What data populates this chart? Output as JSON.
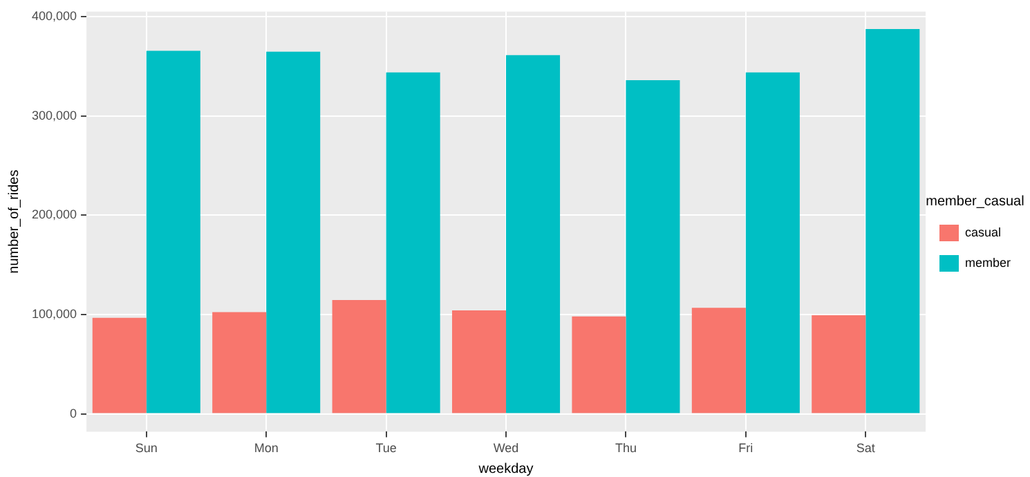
{
  "chart_data": {
    "type": "bar",
    "xlabel": "weekday",
    "ylabel": "number_of_rides",
    "legend_title": "member_casual",
    "categories": [
      "Sun",
      "Mon",
      "Tue",
      "Wed",
      "Thu",
      "Fri",
      "Sat"
    ],
    "series": [
      {
        "name": "casual",
        "color": "#f8766d",
        "values": [
          96700,
          102400,
          114600,
          104100,
          98000,
          106800,
          99300
        ]
      },
      {
        "name": "member",
        "color": "#00bfc4",
        "values": [
          365600,
          364700,
          343800,
          361200,
          336000,
          343800,
          387400
        ]
      }
    ],
    "ylim": [
      -18000,
      405000
    ],
    "yticks": [
      {
        "value": 0,
        "label": "0"
      },
      {
        "value": 100000,
        "label": "100,000"
      },
      {
        "value": 200000,
        "label": "200,000"
      },
      {
        "value": 300000,
        "label": "300,000"
      },
      {
        "value": 400000,
        "label": "400,000"
      }
    ],
    "grid": true,
    "legend": "right"
  }
}
